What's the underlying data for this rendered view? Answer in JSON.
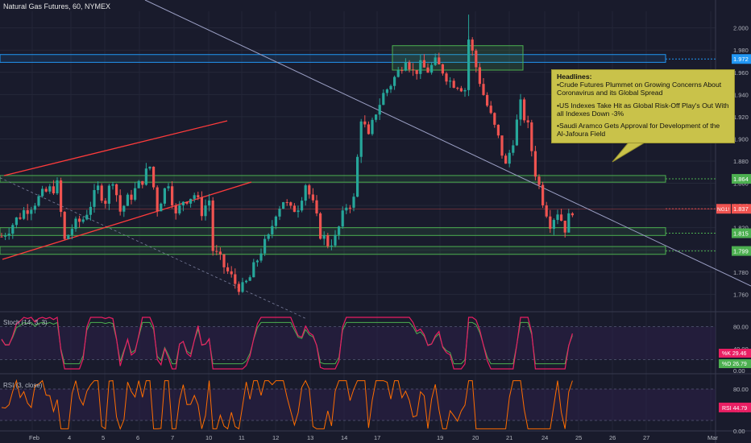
{
  "title": "Natural Gas Futures, 60, NYMEX",
  "colors": {
    "background": "#191b2c",
    "candle_up": "#26a69a",
    "candle_down": "#ef5350",
    "support_line": "#4caf50",
    "resistance_line": "#2196f3",
    "channel_line": "#ff3b3b",
    "trend_line": "#9b9fc4",
    "stoch_k": "#e91e63",
    "stoch_d": "#4caf50",
    "rsi": "#ff6d00",
    "annotation_bg": "#c9c24a",
    "price_badge": "#ef5350"
  },
  "headlines": {
    "title": "Headlines:",
    "items": [
      "Crude Futures Plummet on Growing Concerns About Coronavirus and its Global Spread",
      "US Indexes Take Hit as Global Risk-Off Play's Out With all Indexes Down -3%",
      "Saudi Aramco Gets Approval for Development of the Al-Jafoura Field"
    ]
  },
  "chart_data": [
    {
      "type": "candlestick",
      "title": "Natural Gas Futures, 60, NYMEX",
      "ylim": [
        1.745,
        2.015
      ],
      "y_ticks": [
        "2.000",
        "1.980",
        "1.960",
        "1.940",
        "1.920",
        "1.900",
        "1.880",
        "1.860",
        "1.840",
        "1.820",
        "1.800",
        "1.780",
        "1.760"
      ],
      "x_ticks": [
        "Feb",
        "4",
        "5",
        "6",
        "7",
        "10",
        "11",
        "12",
        "13",
        "14",
        "17",
        "19",
        "20",
        "21",
        "24",
        "25",
        "26",
        "27",
        "Mar"
      ],
      "price_path": [
        [
          0,
          1.812
        ],
        [
          6,
          1.835
        ],
        [
          12,
          1.852
        ],
        [
          15,
          1.858
        ],
        [
          17,
          1.808
        ],
        [
          19,
          1.82
        ],
        [
          22,
          1.828
        ],
        [
          26,
          1.855
        ],
        [
          28,
          1.845
        ],
        [
          30,
          1.865
        ],
        [
          32,
          1.835
        ],
        [
          34,
          1.845
        ],
        [
          37,
          1.858
        ],
        [
          40,
          1.875
        ],
        [
          42,
          1.838
        ],
        [
          45,
          1.862
        ],
        [
          47,
          1.83
        ],
        [
          49,
          1.845
        ],
        [
          52,
          1.85
        ],
        [
          54,
          1.835
        ],
        [
          56,
          1.845
        ],
        [
          57,
          1.8
        ],
        [
          59,
          1.79
        ],
        [
          61,
          1.78
        ],
        [
          63,
          1.77
        ],
        [
          65,
          1.765
        ],
        [
          67,
          1.775
        ],
        [
          70,
          1.8
        ],
        [
          72,
          1.81
        ],
        [
          74,
          1.835
        ],
        [
          76,
          1.845
        ],
        [
          78,
          1.835
        ],
        [
          80,
          1.84
        ],
        [
          82,
          1.86
        ],
        [
          84,
          1.84
        ],
        [
          86,
          1.815
        ],
        [
          88,
          1.806
        ],
        [
          90,
          1.81
        ],
        [
          93,
          1.84
        ],
        [
          95,
          1.845
        ],
        [
          97,
          1.92
        ],
        [
          99,
          1.9
        ],
        [
          101,
          1.925
        ],
        [
          103,
          1.94
        ],
        [
          105,
          1.95
        ],
        [
          107,
          1.96
        ],
        [
          109,
          1.975
        ],
        [
          111,
          1.96
        ],
        [
          113,
          1.965
        ],
        [
          115,
          1.962
        ],
        [
          117,
          1.968
        ],
        [
          119,
          1.962
        ],
        [
          121,
          1.952
        ],
        [
          123,
          1.95
        ],
        [
          125,
          1.945
        ],
        [
          126,
          1.99
        ],
        [
          128,
          1.965
        ],
        [
          130,
          1.94
        ],
        [
          132,
          1.92
        ],
        [
          134,
          1.9
        ],
        [
          136,
          1.875
        ],
        [
          138,
          1.9
        ],
        [
          140,
          1.93
        ],
        [
          142,
          1.91
        ],
        [
          144,
          1.87
        ],
        [
          146,
          1.845
        ],
        [
          148,
          1.825
        ],
        [
          150,
          1.835
        ],
        [
          152,
          1.82
        ],
        [
          154,
          1.837
        ]
      ],
      "x_days": [
        0,
        8,
        16,
        24,
        32,
        41,
        49,
        57,
        65,
        73,
        81,
        89,
        97,
        105,
        113,
        121,
        129,
        137,
        145,
        153
      ],
      "price_labels": [
        {
          "text": "1.972",
          "value": 1.972,
          "color": "#2196f3"
        },
        {
          "text": "1.864",
          "value": 1.864,
          "color": "#4caf50"
        },
        {
          "text": "1.837",
          "value": 1.837,
          "color": "#ef5350",
          "prefix": "NG1!"
        },
        {
          "text": "1.815",
          "value": 1.815,
          "color": "#4caf50"
        },
        {
          "text": "1.799",
          "value": 1.799,
          "color": "#4caf50"
        }
      ],
      "zones": [
        {
          "name": "resistance-zone",
          "low": 1.969,
          "high": 1.976,
          "color": "#2196f3"
        },
        {
          "name": "support-zone-upper",
          "low": 1.861,
          "high": 1.867,
          "color": "#4caf50"
        },
        {
          "name": "support-zone-mid",
          "low": 1.813,
          "high": 1.82,
          "color": "#4caf50"
        },
        {
          "name": "support-zone-lower",
          "low": 1.796,
          "high": 1.803,
          "color": "#4caf50"
        }
      ]
    },
    {
      "type": "line",
      "title": "Stoch (14, 3, 3)",
      "ylim": [
        0,
        100
      ],
      "y_ticks": [
        "80.00",
        "40.00",
        "0.00"
      ],
      "series": [
        {
          "name": "%K",
          "last": "29.46",
          "color": "#e91e63"
        },
        {
          "name": "%D",
          "last": "26.79",
          "color": "#4caf50"
        }
      ]
    },
    {
      "type": "line",
      "title": "RSI (3, close)",
      "ylim": [
        0,
        100
      ],
      "y_ticks": [
        "80.00",
        "40.00",
        "0.00"
      ],
      "series": [
        {
          "name": "RSI",
          "last": "44.79",
          "color": "#ff6d00"
        }
      ]
    }
  ],
  "axis_tags": {
    "stoch_k": "%K",
    "stoch_d": "%D",
    "rsi": "RSI",
    "price": "NG1!"
  }
}
